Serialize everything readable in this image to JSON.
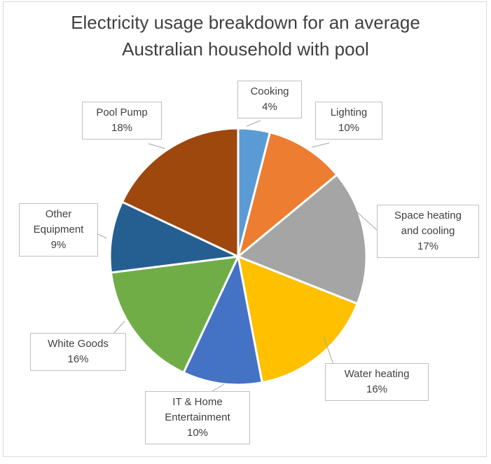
{
  "chart_data": {
    "type": "pie",
    "title_lines": [
      "Electricity  usage breakdown for an average",
      "Australian household with pool"
    ],
    "slices": [
      {
        "label_lines": [
          "Cooking"
        ],
        "percent_label": "4%",
        "value": 4,
        "color": "#5b9bd5"
      },
      {
        "label_lines": [
          "Lighting"
        ],
        "percent_label": "10%",
        "value": 10,
        "color": "#ed7d31"
      },
      {
        "label_lines": [
          "Space heating",
          "and cooling"
        ],
        "percent_label": "17%",
        "value": 17,
        "color": "#a5a5a5"
      },
      {
        "label_lines": [
          "Water heating"
        ],
        "percent_label": "16%",
        "value": 16,
        "color": "#ffc000"
      },
      {
        "label_lines": [
          "IT & Home",
          "Entertainment"
        ],
        "percent_label": "10%",
        "value": 10,
        "color": "#4472c4"
      },
      {
        "label_lines": [
          "White Goods"
        ],
        "percent_label": "16%",
        "value": 16,
        "color": "#70ad47"
      },
      {
        "label_lines": [
          "Other",
          "Equipment"
        ],
        "percent_label": "9%",
        "value": 9,
        "color": "#255e91"
      },
      {
        "label_lines": [
          "Pool Pump"
        ],
        "percent_label": "18%",
        "value": 18,
        "color": "#9e480e"
      }
    ],
    "start_angle": "12 o'clock",
    "direction": "clockwise",
    "slice_border_color": "#ffffff",
    "data_label_style": "callout with leader line"
  }
}
